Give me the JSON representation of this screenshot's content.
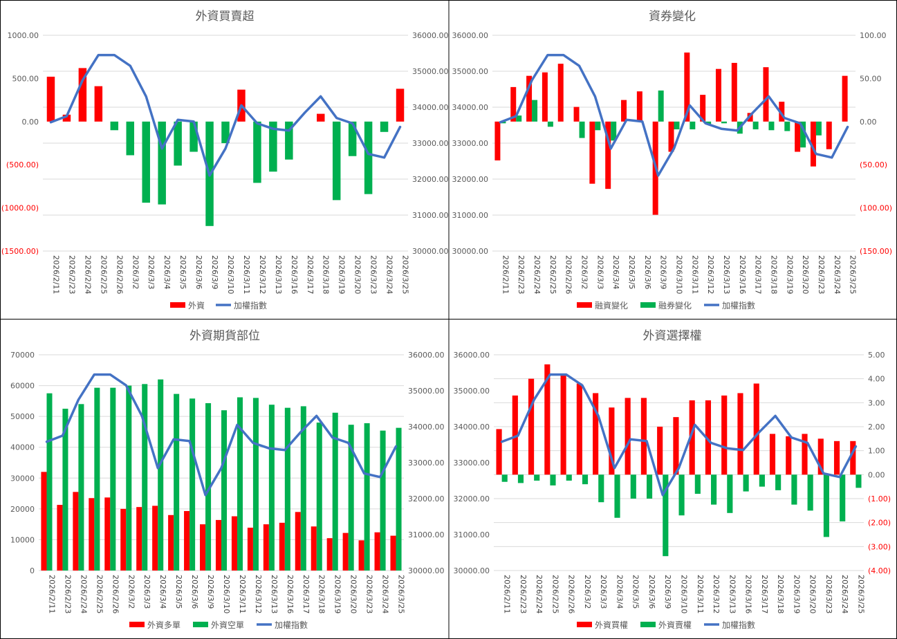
{
  "dates": [
    "2026/2/11",
    "2026/2/23",
    "2026/2/24",
    "2026/2/25",
    "2026/2/26",
    "2026/3/2",
    "2026/3/3",
    "2026/3/4",
    "2026/3/5",
    "2026/3/6",
    "2026/3/9",
    "2026/3/10",
    "2026/3/11",
    "2026/3/12",
    "2026/3/13",
    "2026/3/16",
    "2026/3/17",
    "2026/3/18",
    "2026/3/19",
    "2026/3/20",
    "2026/3/23",
    "2026/3/24",
    "2026/3/25"
  ],
  "index_values": [
    33580,
    33750,
    34750,
    35450,
    35450,
    35150,
    34300,
    32850,
    33650,
    33600,
    32100,
    32850,
    34050,
    33550,
    33400,
    33350,
    33850,
    34300,
    33700,
    33550,
    32700,
    32600,
    33450
  ],
  "colors": {
    "red": "#ff0000",
    "green": "#00b050",
    "blue": "#4472c4",
    "grid": "#d9d9d9",
    "text": "#595959",
    "neg": "#ff0000"
  },
  "chart_data": [
    {
      "type": "bar",
      "title": "外資買賣超",
      "left_axis": {
        "min": -1500,
        "max": 1000,
        "step": 500,
        "ticks": [
          "1000.00",
          "500.00",
          "0.00",
          "(500.00)",
          "(1000.00)",
          "(1500.00)"
        ]
      },
      "right_axis": {
        "min": 30000,
        "max": 36000,
        "step": 1000,
        "ticks": [
          "36000.00",
          "35000.00",
          "34000.00",
          "33000.00",
          "32000.00",
          "31000.00",
          "30000.00"
        ]
      },
      "series": [
        {
          "name": "外資",
          "kind": "bar",
          "axis": "left",
          "color_rule": "sign",
          "values": [
            520,
            80,
            620,
            410,
            -100,
            -390,
            -940,
            -960,
            -510,
            -350,
            -1210,
            -250,
            370,
            -710,
            -580,
            -440,
            0,
            90,
            -910,
            -400,
            -840,
            -120,
            380
          ]
        }
      ],
      "legend": [
        "外資",
        "加權指數"
      ]
    },
    {
      "type": "bar",
      "title": "資券變化",
      "left_axis": {
        "min": 30000,
        "max": 36000,
        "step": 1000,
        "ticks": [
          "36000.00",
          "35000.00",
          "34000.00",
          "33000.00",
          "32000.00",
          "31000.00",
          "30000.00"
        ]
      },
      "right_axis": {
        "min": -150,
        "max": 100,
        "step": 50,
        "ticks": [
          "100.00",
          "50.00",
          "0.00",
          "(50.00)",
          "(100.00)",
          "(150.00)"
        ]
      },
      "series": [
        {
          "name": "融資變化",
          "kind": "bar",
          "axis": "right",
          "color": "#ff0000",
          "values": [
            -45,
            40,
            53,
            57,
            67,
            17,
            -72,
            -78,
            25,
            35,
            -108,
            -35,
            80,
            31,
            61,
            68,
            10,
            63,
            23,
            -35,
            -52,
            -32,
            53
          ]
        },
        {
          "name": "融券變化",
          "kind": "bar",
          "axis": "right",
          "color": "#00b050",
          "values": [
            -2,
            7,
            25,
            -6,
            0,
            -19,
            -10,
            -22,
            0,
            0,
            36,
            -9,
            -9,
            -3,
            -2,
            -14,
            -9,
            -10,
            -11,
            -30,
            -16,
            0,
            0
          ]
        }
      ],
      "legend": [
        "融資變化",
        "融券變化",
        "加權指數"
      ]
    },
    {
      "type": "bar",
      "title": "外資期貨部位",
      "left_axis": {
        "min": 0,
        "max": 70000,
        "step": 10000,
        "ticks": [
          "70000",
          "60000",
          "50000",
          "40000",
          "30000",
          "20000",
          "10000",
          "0"
        ]
      },
      "right_axis": {
        "min": 30000,
        "max": 36000,
        "step": 1000,
        "ticks": [
          "36000.00",
          "35000.00",
          "34000.00",
          "33000.00",
          "32000.00",
          "31000.00",
          "30000.00"
        ]
      },
      "series": [
        {
          "name": "外資多單",
          "kind": "bar",
          "axis": "left",
          "color": "#ff0000",
          "values": [
            32000,
            21300,
            25500,
            23500,
            23700,
            20000,
            20600,
            21000,
            18000,
            19300,
            15000,
            16400,
            17600,
            13900,
            15000,
            15500,
            19000,
            14300,
            10500,
            12200,
            9800,
            12400,
            11300
          ]
        },
        {
          "name": "外資空單",
          "kind": "bar",
          "axis": "left",
          "color": "#00b050",
          "values": [
            57500,
            52500,
            54000,
            59300,
            59300,
            60000,
            60500,
            62000,
            57300,
            55800,
            54300,
            52000,
            56200,
            56000,
            53800,
            52800,
            53300,
            48000,
            51200,
            47300,
            47800,
            45400,
            46300
          ]
        }
      ],
      "legend": [
        "外資多單",
        "外資空單",
        "加權指數"
      ]
    },
    {
      "type": "bar",
      "title": "外資選擇權",
      "left_axis": {
        "min": 30000,
        "max": 36000,
        "step": 1000,
        "ticks": [
          "36000.00",
          "35000.00",
          "34000.00",
          "33000.00",
          "32000.00",
          "31000.00",
          "30000.00"
        ]
      },
      "right_axis": {
        "min": -4,
        "max": 5,
        "step": 1,
        "ticks": [
          "5.00",
          "4.00",
          "3.00",
          "2.00",
          "1.00",
          "0.00",
          "(1.00)",
          "(2.00)",
          "(3.00)",
          "(4.00)"
        ]
      },
      "series": [
        {
          "name": "外資買權",
          "kind": "bar",
          "axis": "right",
          "color": "#ff0000",
          "values": [
            1.9,
            3.3,
            4.0,
            4.6,
            4.2,
            3.8,
            3.4,
            2.8,
            3.2,
            3.2,
            2.0,
            2.4,
            3.1,
            3.1,
            3.3,
            3.4,
            3.8,
            1.7,
            1.6,
            1.7,
            1.5,
            1.4,
            1.4
          ]
        },
        {
          "name": "外資賣權",
          "kind": "bar",
          "axis": "right",
          "color": "#00b050",
          "values": [
            -0.3,
            -0.35,
            -0.25,
            -0.45,
            -0.25,
            -0.4,
            -1.15,
            -1.8,
            -1.0,
            -1.0,
            -3.4,
            -1.7,
            -0.8,
            -1.25,
            -1.6,
            -0.7,
            -0.5,
            -0.65,
            -1.25,
            -1.5,
            -2.6,
            -1.95,
            -0.55
          ]
        }
      ],
      "legend": [
        "外資買權",
        "外資賣權",
        "加權指數"
      ]
    }
  ],
  "index_series_name": "加權指數"
}
